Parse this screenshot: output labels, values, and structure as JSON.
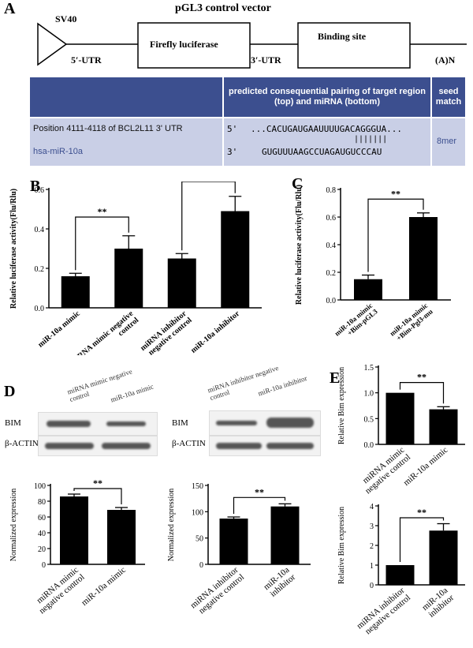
{
  "panels": {
    "A": "A",
    "B": "B",
    "C": "C",
    "D": "D",
    "E": "E"
  },
  "vector": {
    "title": "pGL3 control vector",
    "promoter": "SV40",
    "utr5": "5′-UTR",
    "gene": "Firefly luciferase",
    "utr3": "3′-UTR",
    "site": "Binding site",
    "polyA": "(A)N"
  },
  "table": {
    "header_pairing": "predicted consequential pairing of target region (top) and miRNA (bottom)",
    "header_seed": "seed match",
    "row1_label": "Position 4111-4118 of BCL2L11 3' UTR",
    "row1_prime": "5'",
    "row1_seq": "...CACUGAUGAAUUUUGACAGGGUA...",
    "pairs": "|||||||",
    "row2_label": "hsa-miR-10a",
    "row2_prime": "3'",
    "row2_seq": "GUGUUUAAGCCUAGAUGUCCCAU",
    "seed": "8mer"
  },
  "blots": {
    "left_labels": [
      "miRNA mimic negative control",
      "miR-10a mimic"
    ],
    "right_labels": [
      "miRNA inhibitor negative control",
      "miR-10a inhibitor"
    ],
    "bim": "BIM",
    "actin": "β-ACTIN"
  },
  "significance": "**",
  "chart_data": [
    {
      "id": "B",
      "type": "bar",
      "ylabel": "Relative luciferase activity(Flu/Rlu)",
      "ylim": [
        0,
        0.6
      ],
      "yticks": [
        0.0,
        0.2,
        0.4,
        0.6
      ],
      "categories": [
        "miR-10a mimic",
        "miRNA mimic negative control",
        "miRNA inhibitor negative control",
        "miR-10a inhibitor"
      ],
      "values": [
        0.16,
        0.3,
        0.25,
        0.49
      ],
      "errors": [
        0.015,
        0.065,
        0.025,
        0.075
      ],
      "brackets": [
        [
          0,
          1,
          0.46
        ],
        [
          2,
          3,
          0.64
        ]
      ]
    },
    {
      "id": "C",
      "type": "bar",
      "ylabel": "Relative luciferase activity(Flu/Rlu)",
      "ylim": [
        0,
        0.8
      ],
      "yticks": [
        0.0,
        0.2,
        0.4,
        0.6,
        0.8
      ],
      "categories": [
        "miR-10a mimic +Bim-pGL3",
        "miR-10a mimic +Bim-Pgl3-mu"
      ],
      "values": [
        0.15,
        0.6
      ],
      "errors": [
        0.03,
        0.03
      ],
      "brackets": [
        [
          0,
          1,
          0.73
        ]
      ]
    },
    {
      "id": "D1",
      "type": "bar",
      "ylabel": "Normalized expression",
      "ylim": [
        0,
        100
      ],
      "yticks": [
        0,
        20,
        40,
        60,
        80,
        100
      ],
      "categories": [
        "miRNA mimic negative control",
        "miR-10a mimic"
      ],
      "values": [
        86,
        69
      ],
      "errors": [
        3,
        3
      ],
      "brackets": [
        [
          0,
          1,
          96
        ]
      ]
    },
    {
      "id": "D2",
      "type": "bar",
      "ylabel": "Normalized expression",
      "ylim": [
        0,
        150
      ],
      "yticks": [
        0,
        50,
        100,
        150
      ],
      "categories": [
        "miRNA inhibitor negative control",
        "miR-10a inhibitor"
      ],
      "values": [
        87,
        110
      ],
      "errors": [
        3,
        5
      ],
      "brackets": [
        [
          0,
          1,
          127
        ]
      ]
    },
    {
      "id": "E1",
      "type": "bar",
      "ylabel": "Relative Bim expression",
      "ylim": [
        0,
        1.5
      ],
      "yticks": [
        0.0,
        0.5,
        1.0,
        1.5
      ],
      "categories": [
        "miRNA mimic negative control",
        "miR-10a mimic"
      ],
      "values": [
        1.0,
        0.68
      ],
      "errors": [
        0,
        0.05
      ],
      "brackets": [
        [
          0,
          1,
          1.2
        ]
      ]
    },
    {
      "id": "E2",
      "type": "bar",
      "ylabel": "Relative Bim expression",
      "ylim": [
        0,
        4
      ],
      "yticks": [
        0,
        1,
        2,
        3,
        4
      ],
      "categories": [
        "miRNA inhibitor negative control",
        "miR-10a inhibitor"
      ],
      "values": [
        1.0,
        2.75
      ],
      "errors": [
        0,
        0.35
      ],
      "brackets": [
        [
          0,
          1,
          3.4
        ]
      ]
    }
  ]
}
